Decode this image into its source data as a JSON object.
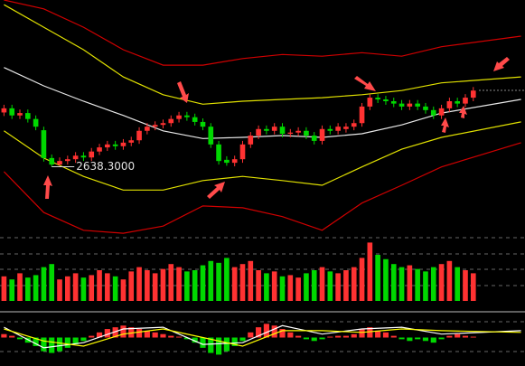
{
  "chart_data": {
    "type": "candlestick",
    "xlim": [
      -0.5,
      65.5
    ],
    "ylim": [
      2520,
      2920
    ],
    "up_color": "#ff3232",
    "down_color": "#00d800",
    "open": [
      2730,
      2737,
      2725,
      2729,
      2719,
      2700,
      2653,
      2642,
      2648,
      2651,
      2657,
      2654,
      2664,
      2671,
      2676,
      2673,
      2679,
      2683,
      2699,
      2706,
      2709,
      2712,
      2719,
      2725,
      2722,
      2714,
      2706,
      2676,
      2650,
      2645,
      2651,
      2676,
      2691,
      2702,
      2699,
      2706,
      2694,
      2696,
      2699,
      2691,
      2682,
      2702,
      2699,
      2702,
      2706,
      2712,
      2740,
      2755,
      2752,
      2749,
      2745,
      2740,
      2745,
      2740,
      2734,
      2725,
      2737,
      2749,
      2745,
      2755
    ],
    "high": [
      2743,
      2743,
      2735,
      2735,
      2725,
      2706,
      2659,
      2654,
      2657,
      2663,
      2663,
      2670,
      2677,
      2682,
      2682,
      2685,
      2689,
      2705,
      2712,
      2715,
      2718,
      2725,
      2731,
      2731,
      2728,
      2720,
      2712,
      2682,
      2656,
      2657,
      2682,
      2697,
      2708,
      2708,
      2712,
      2712,
      2702,
      2705,
      2705,
      2697,
      2708,
      2708,
      2712,
      2712,
      2718,
      2746,
      2761,
      2761,
      2758,
      2755,
      2751,
      2751,
      2751,
      2746,
      2740,
      2743,
      2755,
      2755,
      2761,
      2773
    ],
    "low": [
      2724,
      2719,
      2719,
      2713,
      2700,
      2647,
      2638.3,
      2640,
      2642,
      2645,
      2648,
      2648,
      2658,
      2665,
      2667,
      2667,
      2673,
      2677,
      2693,
      2700,
      2703,
      2706,
      2713,
      2716,
      2708,
      2700,
      2670,
      2642,
      2640,
      2639,
      2645,
      2670,
      2685,
      2693,
      2693,
      2688,
      2688,
      2690,
      2685,
      2676,
      2676,
      2693,
      2693,
      2696,
      2700,
      2706,
      2734,
      2746,
      2743,
      2739,
      2734,
      2734,
      2734,
      2728,
      2719,
      2719,
      2731,
      2739,
      2739,
      2749
    ],
    "close": [
      2737,
      2725,
      2729,
      2719,
      2706,
      2653,
      2642,
      2648,
      2651,
      2657,
      2654,
      2664,
      2671,
      2676,
      2673,
      2679,
      2683,
      2699,
      2706,
      2709,
      2712,
      2719,
      2725,
      2722,
      2714,
      2706,
      2676,
      2648,
      2645,
      2651,
      2676,
      2691,
      2702,
      2699,
      2706,
      2694,
      2696,
      2699,
      2691,
      2682,
      2702,
      2699,
      2706,
      2706,
      2712,
      2740,
      2755,
      2752,
      2749,
      2745,
      2740,
      2745,
      2740,
      2734,
      2725,
      2737,
      2749,
      2745,
      2755,
      2767
    ],
    "annotation": "2638.3000",
    "bands": {
      "x": [
        0,
        5,
        10,
        15,
        20,
        25,
        30,
        35,
        40,
        45,
        50,
        55,
        65
      ],
      "series": [
        {
          "color": "#d00000",
          "values": [
            2920,
            2905,
            2874,
            2836,
            2810,
            2810,
            2821,
            2828,
            2825,
            2831,
            2825,
            2841,
            2859
          ]
        },
        {
          "color": "#e0e000",
          "values": [
            2912,
            2874,
            2836,
            2790,
            2760,
            2744,
            2749,
            2752,
            2755,
            2760,
            2767,
            2780,
            2790
          ]
        },
        {
          "color": "#e8e8e8",
          "values": [
            2806,
            2775,
            2749,
            2725,
            2699,
            2686,
            2688,
            2691,
            2688,
            2694,
            2709,
            2729,
            2752
          ]
        },
        {
          "color": "#e0e000",
          "values": [
            2699,
            2653,
            2622,
            2599,
            2599,
            2615,
            2622,
            2615,
            2607,
            2638,
            2668,
            2688,
            2714
          ]
        },
        {
          "color": "#d00000",
          "values": [
            2630,
            2561,
            2531,
            2526,
            2538,
            2572,
            2569,
            2554,
            2531,
            2577,
            2607,
            2638,
            2679
          ]
        }
      ]
    },
    "volume": {
      "ylim": [
        0,
        100
      ],
      "values": [
        40,
        35,
        45,
        38,
        42,
        55,
        60,
        35,
        40,
        45,
        38,
        42,
        50,
        45,
        40,
        35,
        48,
        55,
        50,
        45,
        52,
        60,
        55,
        48,
        50,
        58,
        65,
        62,
        70,
        55,
        60,
        65,
        50,
        45,
        48,
        40,
        42,
        38,
        45,
        50,
        55,
        48,
        45,
        50,
        55,
        70,
        95,
        75,
        68,
        60,
        55,
        58,
        52,
        48,
        55,
        60,
        65,
        55,
        50,
        45
      ]
    },
    "macd": {
      "ylim": [
        -1.4,
        1.4
      ],
      "pos_color": "#ff3232",
      "neg_color": "#00d800",
      "histogram": [
        0.2,
        0.1,
        -0.1,
        -0.3,
        -0.5,
        -0.8,
        -0.9,
        -0.8,
        -0.6,
        -0.4,
        -0.2,
        0.1,
        0.3,
        0.5,
        0.6,
        0.7,
        0.6,
        0.5,
        0.4,
        0.3,
        0.2,
        0.1,
        0.05,
        -0.1,
        -0.3,
        -0.6,
        -0.9,
        -1,
        -0.8,
        -0.5,
        -0.2,
        0.3,
        0.6,
        0.8,
        0.7,
        0.5,
        0.3,
        0.1,
        -0.1,
        -0.2,
        -0.1,
        0.05,
        0.1,
        0.1,
        0.2,
        0.5,
        0.6,
        0.4,
        0.3,
        0.1,
        -0.1,
        -0.2,
        -0.1,
        -0.2,
        -0.3,
        -0.1,
        0.1,
        0.2,
        0.1,
        0.05
      ],
      "x": [
        0,
        5,
        10,
        15,
        20,
        25,
        30,
        35,
        40,
        45,
        50,
        55,
        65
      ],
      "lines": [
        {
          "color": "#ffffff",
          "values": [
            0.6,
            -0.6,
            -0.3,
            0.5,
            0.6,
            -0.4,
            -0.3,
            0.7,
            0.2,
            0.5,
            0.6,
            0.2,
            0.4
          ]
        },
        {
          "color": "#ffff00",
          "values": [
            0.5,
            -0.2,
            -0.5,
            0.2,
            0.5,
            0.0,
            -0.5,
            0.4,
            0.4,
            0.3,
            0.5,
            0.4,
            0.3
          ]
        }
      ]
    }
  }
}
